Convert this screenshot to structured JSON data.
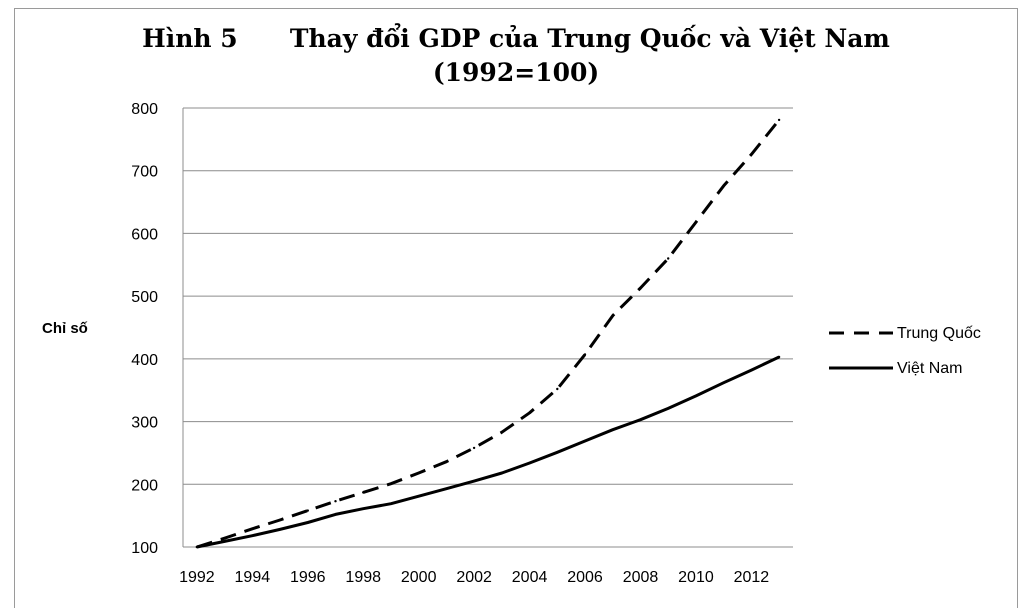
{
  "chart_data": {
    "type": "line",
    "title": "Hình 5      Thay đổi GDP của Trung Quốc và Việt Nam",
    "subtitle": "(1992=100)",
    "xlabel": "",
    "ylabel": "Chỉ số",
    "x": [
      1992,
      1993,
      1994,
      1995,
      1996,
      1997,
      1998,
      1999,
      2000,
      2001,
      2002,
      2003,
      2004,
      2005,
      2006,
      2007,
      2008,
      2009,
      2010,
      2011,
      2012,
      2013
    ],
    "xticks": [
      "1992",
      "1994",
      "1996",
      "1998",
      "2000",
      "2002",
      "2004",
      "2006",
      "2008",
      "2010",
      "2012"
    ],
    "ylim": [
      100,
      800
    ],
    "yticks": [
      "100",
      "200",
      "300",
      "400",
      "500",
      "600",
      "700",
      "800"
    ],
    "grid": true,
    "legend_position": "right",
    "series": [
      {
        "name": "Trung Quốc",
        "style": "dashed",
        "color": "#000000",
        "values": [
          100,
          114,
          129,
          143,
          158,
          173,
          187,
          201,
          218,
          236,
          258,
          283,
          314,
          352,
          407,
          469,
          513,
          560,
          618,
          676,
          726,
          781
        ]
      },
      {
        "name": "Việt Nam",
        "style": "solid",
        "color": "#000000",
        "values": [
          100,
          109,
          118,
          128,
          139,
          152,
          161,
          169,
          181,
          193,
          205,
          218,
          234,
          251,
          269,
          287,
          303,
          321,
          341,
          362,
          382,
          403
        ]
      }
    ]
  }
}
